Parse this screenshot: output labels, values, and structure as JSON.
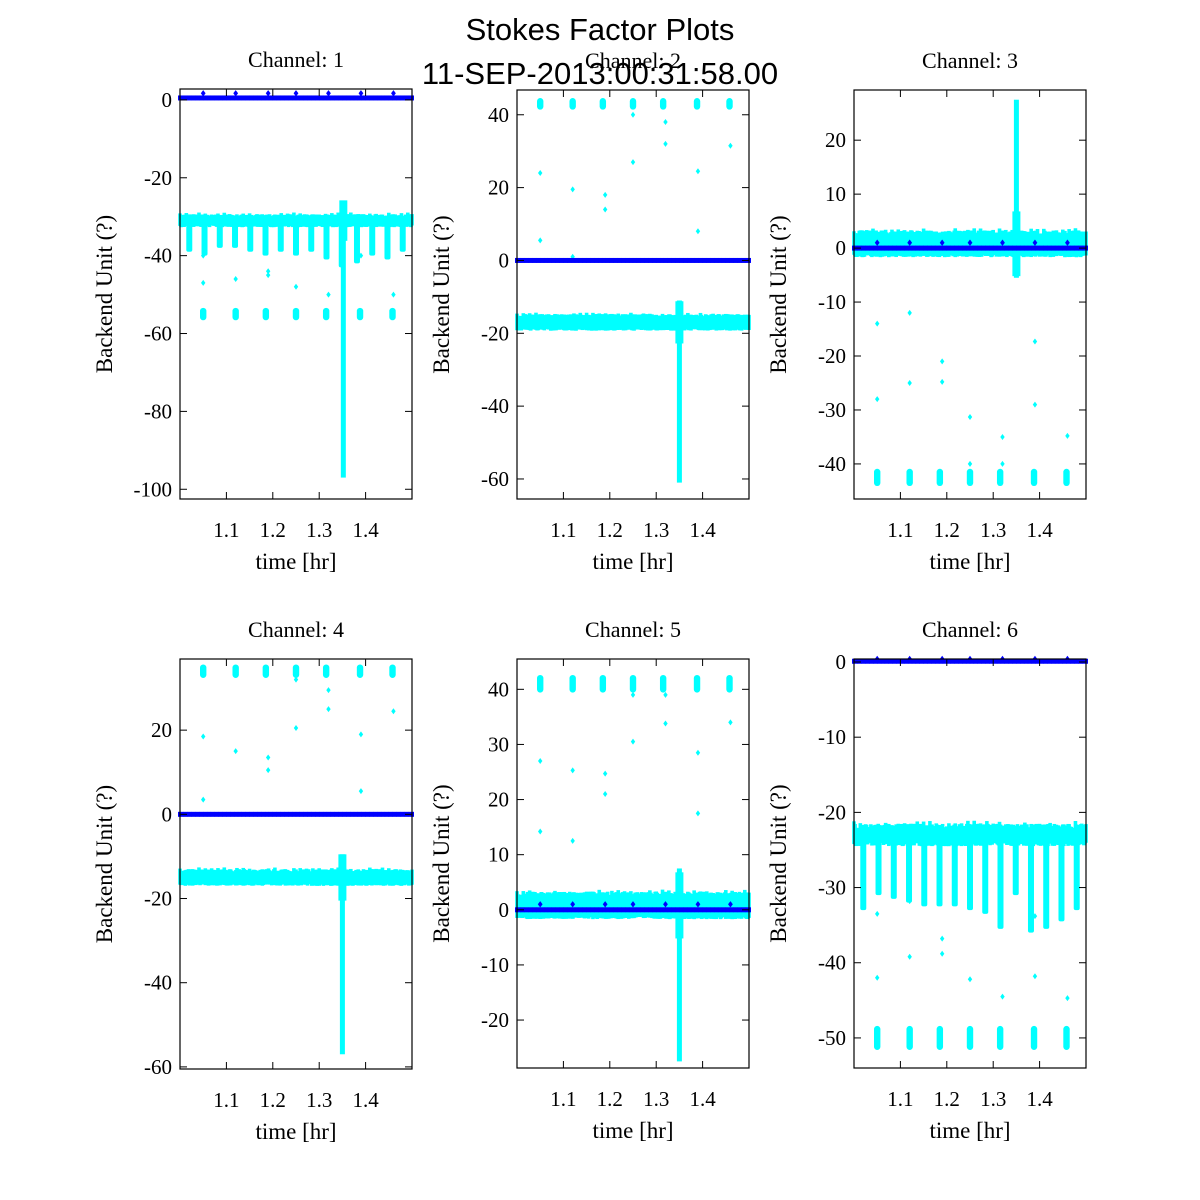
{
  "figure": {
    "title_line1": "Stokes Factor Plots",
    "title_line2": "11-SEP-2013:00:31:58.00"
  },
  "colors": {
    "series_cyan": "#00ffff",
    "series_blue": "#0000ff",
    "axes": "#000000",
    "background": "#ffffff"
  },
  "chart_data": [
    {
      "type": "scatter",
      "title": "Channel: 1",
      "xlabel": "time [hr]",
      "ylabel": "Backend Unit (?)",
      "xlim": [
        1.0,
        1.5
      ],
      "ylim": [
        -102.5,
        2.8
      ],
      "xticks": [
        1.1,
        1.2,
        1.3,
        1.4
      ],
      "xtick_labels": [
        "1.1",
        "1.2",
        "1.3",
        "1.4"
      ],
      "yticks": [
        0,
        -20,
        -40,
        -60,
        -80,
        -100
      ],
      "ytick_labels": [
        "0",
        "-20",
        "-40",
        "-60",
        "-80",
        "-100"
      ],
      "grid": false,
      "series": [
        {
          "name": "cyan",
          "color": "#00ffff",
          "band_center": -31,
          "band_halfwidth": 1.2,
          "dip_bottoms": [
            -39,
            -40,
            -38,
            -38,
            -39,
            -40,
            -39,
            -40,
            -39,
            -41,
            -43,
            -42,
            -40,
            -41,
            -39
          ],
          "clusters_y": [
            -55
          ],
          "spike": {
            "x": 1.352,
            "from": -31,
            "to": -97
          },
          "outliers": [
            [
              1.05,
              -47
            ],
            [
              1.05,
              -40
            ],
            [
              1.12,
              -46
            ],
            [
              1.19,
              -44
            ],
            [
              1.19,
              -45
            ],
            [
              1.25,
              -48
            ],
            [
              1.32,
              -50
            ],
            [
              1.39,
              -40
            ],
            [
              1.46,
              -50
            ]
          ]
        },
        {
          "name": "blue",
          "color": "#0000ff",
          "level": 0.5,
          "bumps": [
            1.05,
            1.12,
            1.19,
            1.25,
            1.32,
            1.39,
            1.46
          ],
          "bump_height": 1.2
        }
      ]
    },
    {
      "type": "scatter",
      "title": "Channel: 2",
      "xlabel": "time [hr]",
      "ylabel": "Backend Unit (?)",
      "xlim": [
        1.0,
        1.5
      ],
      "ylim": [
        -65.5,
        46.8
      ],
      "xticks": [
        1.1,
        1.2,
        1.3,
        1.4
      ],
      "xtick_labels": [
        "1.1",
        "1.2",
        "1.3",
        "1.4"
      ],
      "yticks": [
        40,
        20,
        0,
        -20,
        -40,
        -60
      ],
      "ytick_labels": [
        "40",
        "20",
        "0",
        "-20",
        "-40",
        "-60"
      ],
      "grid": false,
      "series": [
        {
          "name": "cyan",
          "color": "#00ffff",
          "band_center": -17,
          "band_halfwidth": 1.8,
          "dip_bottoms": [],
          "clusters_y": [
            43
          ],
          "spike": {
            "x": 1.35,
            "from": -11,
            "to": -61
          },
          "outliers": [
            [
              1.05,
              24
            ],
            [
              1.05,
              5.5
            ],
            [
              1.12,
              19.5
            ],
            [
              1.12,
              1
            ],
            [
              1.19,
              18
            ],
            [
              1.19,
              14
            ],
            [
              1.25,
              27
            ],
            [
              1.25,
              40
            ],
            [
              1.32,
              38
            ],
            [
              1.32,
              32
            ],
            [
              1.39,
              24.5
            ],
            [
              1.39,
              8
            ],
            [
              1.46,
              31.5
            ]
          ]
        },
        {
          "name": "blue",
          "color": "#0000ff",
          "level": 0,
          "bumps": [],
          "bump_height": 0
        }
      ]
    },
    {
      "type": "scatter",
      "title": "Channel: 3",
      "xlabel": "time [hr]",
      "ylabel": "Backend Unit (?)",
      "xlim": [
        1.0,
        1.5
      ],
      "ylim": [
        -46.5,
        29.3
      ],
      "xticks": [
        1.1,
        1.2,
        1.3,
        1.4
      ],
      "xtick_labels": [
        "1.1",
        "1.2",
        "1.3",
        "1.4"
      ],
      "yticks": [
        20,
        10,
        0,
        -10,
        -20,
        -30,
        -40
      ],
      "ytick_labels": [
        "20",
        "10",
        "0",
        "-10",
        "-20",
        "-30",
        "-40"
      ],
      "grid": false,
      "series": [
        {
          "name": "cyan",
          "color": "#00ffff",
          "band_center": 0.8,
          "band_halfwidth": 2.0,
          "dip_bottoms": [],
          "clusters_y": [
            -42.5
          ],
          "spike": {
            "x": 1.35,
            "from": -5.5,
            "to": 27.5
          },
          "outliers": [
            [
              1.05,
              -14
            ],
            [
              1.05,
              -28
            ],
            [
              1.12,
              -12
            ],
            [
              1.12,
              -25
            ],
            [
              1.19,
              -21
            ],
            [
              1.19,
              -24.8
            ],
            [
              1.25,
              -31.3
            ],
            [
              1.25,
              -40
            ],
            [
              1.32,
              -35
            ],
            [
              1.32,
              -40
            ],
            [
              1.39,
              -17.3
            ],
            [
              1.39,
              -29
            ],
            [
              1.46,
              -34.8
            ]
          ]
        },
        {
          "name": "blue",
          "color": "#0000ff",
          "level": 0,
          "bumps": [
            1.05,
            1.12,
            1.19,
            1.25,
            1.32,
            1.39,
            1.46
          ],
          "bump_height": 1.0
        }
      ]
    },
    {
      "type": "scatter",
      "title": "Channel: 4",
      "xlabel": "time [hr]",
      "ylabel": "Backend Unit (?)",
      "xlim": [
        1.0,
        1.5
      ],
      "ylim": [
        -60.5,
        36.9
      ],
      "xticks": [
        1.1,
        1.2,
        1.3,
        1.4
      ],
      "xtick_labels": [
        "1.1",
        "1.2",
        "1.3",
        "1.4"
      ],
      "yticks": [
        20,
        0,
        -20,
        -40,
        -60
      ],
      "ytick_labels": [
        "20",
        "0",
        "-20",
        "-40",
        "-60"
      ],
      "grid": false,
      "series": [
        {
          "name": "cyan",
          "color": "#00ffff",
          "band_center": -15,
          "band_halfwidth": 1.5,
          "dip_bottoms": [],
          "clusters_y": [
            34
          ],
          "spike": {
            "x": 1.35,
            "from": -9.5,
            "to": -57
          },
          "outliers": [
            [
              1.05,
              18.5
            ],
            [
              1.05,
              3.5
            ],
            [
              1.12,
              15
            ],
            [
              1.19,
              13.5
            ],
            [
              1.19,
              10.5
            ],
            [
              1.25,
              20.5
            ],
            [
              1.25,
              32
            ],
            [
              1.32,
              29.5
            ],
            [
              1.32,
              25
            ],
            [
              1.39,
              19
            ],
            [
              1.39,
              5.5
            ],
            [
              1.46,
              24.5
            ]
          ]
        },
        {
          "name": "blue",
          "color": "#0000ff",
          "level": 0,
          "bumps": [],
          "bump_height": 0
        }
      ]
    },
    {
      "type": "scatter",
      "title": "Channel: 5",
      "xlabel": "time [hr]",
      "ylabel": "Backend Unit (?)",
      "xlim": [
        1.0,
        1.5
      ],
      "ylim": [
        -28.7,
        45.5
      ],
      "xticks": [
        1.1,
        1.2,
        1.3,
        1.4
      ],
      "xtick_labels": [
        "1.1",
        "1.2",
        "1.3",
        "1.4"
      ],
      "yticks": [
        40,
        30,
        20,
        10,
        0,
        -10,
        -20
      ],
      "ytick_labels": [
        "40",
        "30",
        "20",
        "10",
        "0",
        "-10",
        "-20"
      ],
      "grid": false,
      "series": [
        {
          "name": "cyan",
          "color": "#00ffff",
          "band_center": 0.8,
          "band_halfwidth": 2.0,
          "dip_bottoms": [],
          "clusters_y": [
            41
          ],
          "spike": {
            "x": 1.35,
            "from": -27.5,
            "to": 7.5
          },
          "outliers": [
            [
              1.05,
              27
            ],
            [
              1.05,
              14.2
            ],
            [
              1.12,
              25.3
            ],
            [
              1.12,
              12.5
            ],
            [
              1.19,
              24.7
            ],
            [
              1.19,
              21
            ],
            [
              1.25,
              30.5
            ],
            [
              1.25,
              39
            ],
            [
              1.32,
              33.8
            ],
            [
              1.32,
              39
            ],
            [
              1.39,
              28.5
            ],
            [
              1.39,
              17.5
            ],
            [
              1.46,
              34
            ]
          ]
        },
        {
          "name": "blue",
          "color": "#0000ff",
          "level": 0,
          "bumps": [
            1.05,
            1.12,
            1.19,
            1.25,
            1.32,
            1.39,
            1.46
          ],
          "bump_height": 1.0
        }
      ]
    },
    {
      "type": "scatter",
      "title": "Channel: 6",
      "xlabel": "time [hr]",
      "ylabel": "Backend Unit (?)",
      "xlim": [
        1.0,
        1.5
      ],
      "ylim": [
        -54,
        0.4
      ],
      "xticks": [
        1.1,
        1.2,
        1.3,
        1.4
      ],
      "xtick_labels": [
        "1.1",
        "1.2",
        "1.3",
        "1.4"
      ],
      "yticks": [
        0,
        -10,
        -20,
        -30,
        -40,
        -50
      ],
      "ytick_labels": [
        "0",
        "-10",
        "-20",
        "-30",
        "-40",
        "-50"
      ],
      "grid": false,
      "series": [
        {
          "name": "cyan",
          "color": "#00ffff",
          "band_center": -23,
          "band_halfwidth": 1.0,
          "dip_bottoms": [
            -33,
            -31,
            -31.5,
            -32,
            -32.5,
            -32.5,
            -32.5,
            -33,
            -33.5,
            -35.5,
            -31,
            -36,
            -35.5,
            -34.5,
            -33
          ],
          "clusters_y": [
            -50
          ],
          "spike": null,
          "outliers": [
            [
              1.05,
              -33.5
            ],
            [
              1.05,
              -42
            ],
            [
              1.12,
              -31.8
            ],
            [
              1.12,
              -39.2
            ],
            [
              1.19,
              -36.8
            ],
            [
              1.19,
              -38.8
            ],
            [
              1.25,
              -42.2
            ],
            [
              1.32,
              -44.5
            ],
            [
              1.39,
              -33.8
            ],
            [
              1.39,
              -41.8
            ],
            [
              1.46,
              -44.7
            ]
          ]
        },
        {
          "name": "blue",
          "color": "#0000ff",
          "level": 0.1,
          "bumps": [
            1.05,
            1.12,
            1.19,
            1.25,
            1.32,
            1.39,
            1.46
          ],
          "bump_height": 0.3
        }
      ]
    }
  ]
}
